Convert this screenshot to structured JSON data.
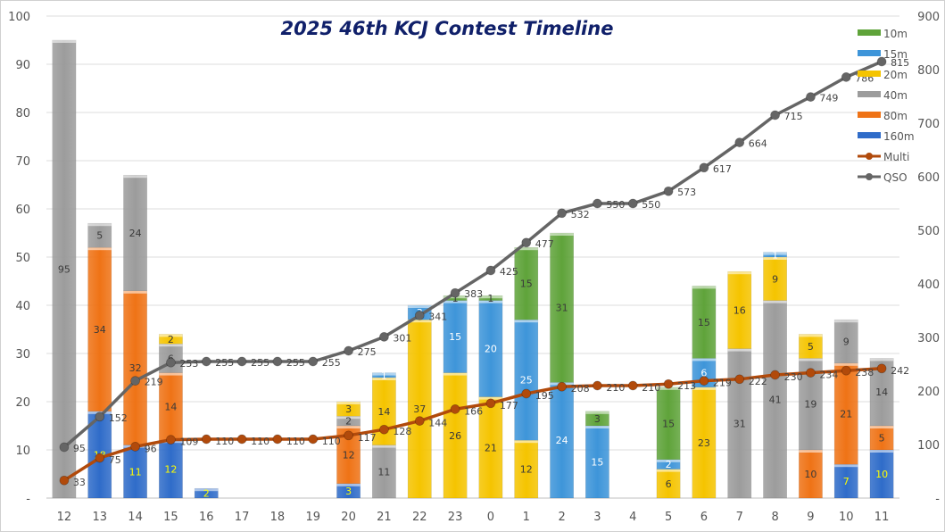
{
  "chart_data": {
    "type": "bar",
    "title": "2025 46th KCJ Contest Timeline",
    "categories": [
      "12",
      "13",
      "14",
      "15",
      "16",
      "17",
      "18",
      "19",
      "20",
      "21",
      "22",
      "23",
      "0",
      "1",
      "2",
      "3",
      "4",
      "5",
      "6",
      "7",
      "8",
      "9",
      "10",
      "11"
    ],
    "stacked": true,
    "y_left": {
      "range": [
        0,
        100
      ],
      "ticks": [
        "-",
        "10",
        "20",
        "30",
        "40",
        "50",
        "60",
        "70",
        "80",
        "90",
        "100"
      ]
    },
    "y_right": {
      "range": [
        0,
        900
      ],
      "ticks": [
        "-",
        "100",
        "200",
        "300",
        "400",
        "500",
        "600",
        "700",
        "800",
        "900"
      ]
    },
    "grid": true,
    "legend_position": "right",
    "series": [
      {
        "name": "160m",
        "kind": "bar",
        "axis": "left",
        "color": "#2f6cc9",
        "label_color": "#ffff00",
        "values": [
          0,
          18,
          11,
          12,
          2,
          0,
          0,
          0,
          3,
          0,
          0,
          0,
          0,
          0,
          0,
          0,
          0,
          0,
          0,
          0,
          0,
          0,
          7,
          10
        ]
      },
      {
        "name": "80m",
        "kind": "bar",
        "axis": "left",
        "color": "#ef7316",
        "label_color": "#3a3a3a",
        "values": [
          0,
          34,
          32,
          14,
          0,
          0,
          0,
          0,
          12,
          0,
          0,
          0,
          0,
          0,
          0,
          0,
          0,
          0,
          0,
          0,
          0,
          10,
          21,
          5
        ]
      },
      {
        "name": "40m",
        "kind": "bar",
        "axis": "left",
        "color": "#9c9c9c",
        "label_color": "#3a3a3a",
        "values": [
          95,
          5,
          24,
          6,
          0,
          0,
          0,
          0,
          2,
          11,
          0,
          0,
          0,
          0,
          0,
          0,
          0,
          0,
          0,
          31,
          41,
          19,
          9,
          14
        ]
      },
      {
        "name": "20m",
        "kind": "bar",
        "axis": "left",
        "color": "#f5c400",
        "label_color": "#3a3a3a",
        "values": [
          0,
          0,
          0,
          2,
          0,
          0,
          0,
          0,
          3,
          14,
          37,
          26,
          21,
          12,
          0,
          0,
          0,
          6,
          23,
          16,
          9,
          5,
          0,
          0
        ]
      },
      {
        "name": "15m",
        "kind": "bar",
        "axis": "left",
        "color": "#3e95d9",
        "label_color": "#ffffff",
        "values": [
          0,
          0,
          0,
          0,
          0,
          0,
          0,
          0,
          0,
          1,
          3,
          15,
          20,
          25,
          24,
          15,
          0,
          2,
          6,
          0,
          1,
          0,
          0,
          0
        ]
      },
      {
        "name": "10m",
        "kind": "bar",
        "axis": "left",
        "color": "#5fa33a",
        "label_color": "#3a3a3a",
        "values": [
          0,
          0,
          0,
          0,
          0,
          0,
          0,
          0,
          0,
          0,
          0,
          1,
          1,
          15,
          31,
          3,
          0,
          15,
          15,
          0,
          0,
          0,
          0,
          0
        ]
      },
      {
        "name": "Multi",
        "kind": "line",
        "axis": "right",
        "color": "#b14a0b",
        "values": [
          33,
          75,
          96,
          109,
          110,
          110,
          110,
          110,
          117,
          128,
          144,
          166,
          177,
          195,
          208,
          210,
          210,
          213,
          219,
          222,
          230,
          234,
          238,
          242
        ]
      },
      {
        "name": "QSO",
        "kind": "line",
        "axis": "right",
        "color": "#656565",
        "values": [
          95,
          152,
          219,
          253,
          255,
          255,
          255,
          255,
          275,
          301,
          341,
          383,
          425,
          477,
          532,
          550,
          550,
          573,
          617,
          664,
          715,
          749,
          786,
          815
        ]
      }
    ],
    "legend_order": [
      "10m",
      "15m",
      "20m",
      "40m",
      "80m",
      "160m",
      "Multi",
      "QSO"
    ]
  }
}
